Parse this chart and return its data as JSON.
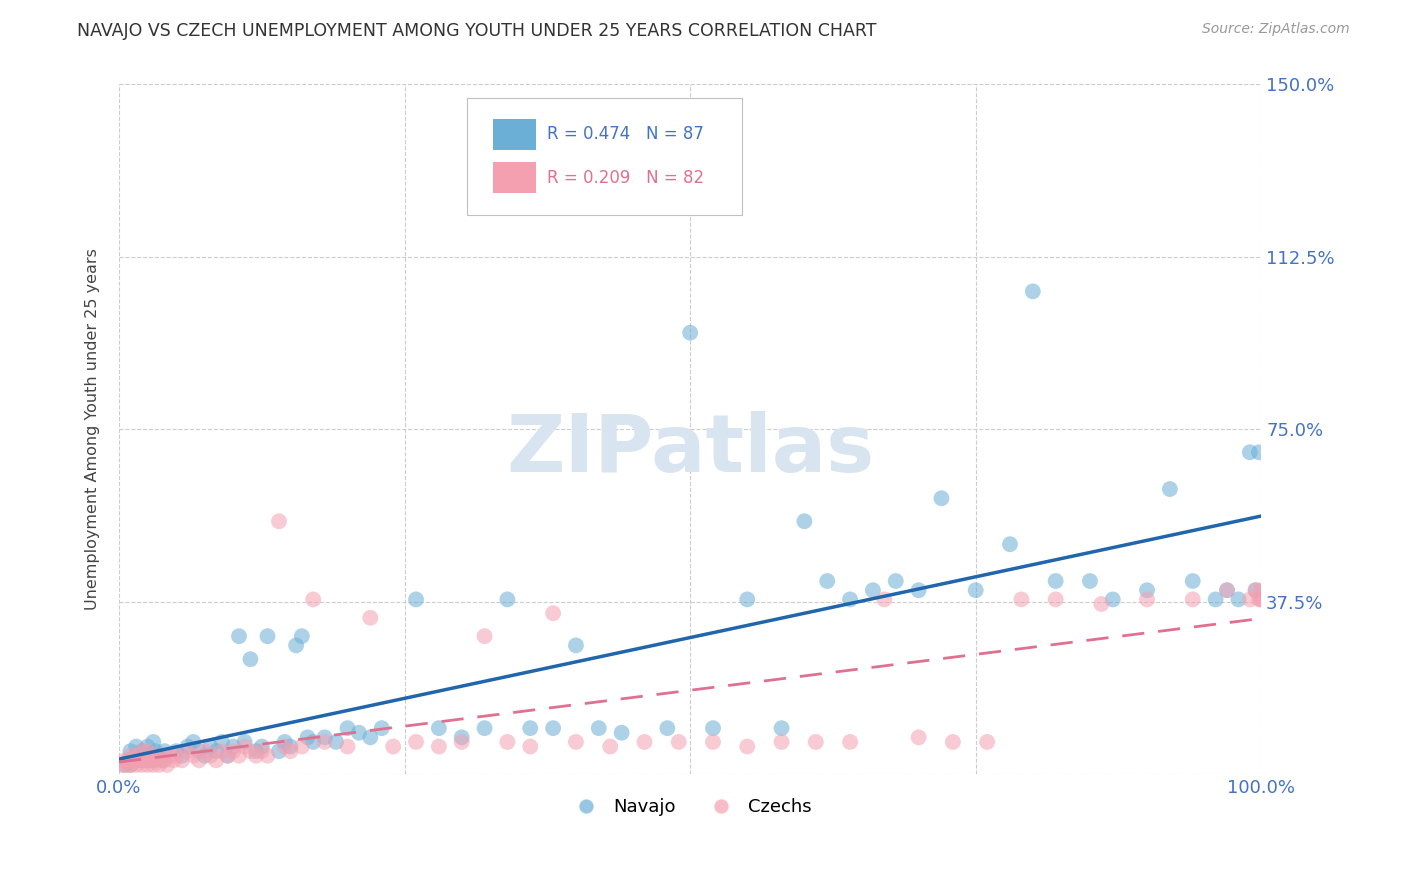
{
  "title": "NAVAJO VS CZECH UNEMPLOYMENT AMONG YOUTH UNDER 25 YEARS CORRELATION CHART",
  "source": "Source: ZipAtlas.com",
  "ylabel": "Unemployment Among Youth under 25 years",
  "yticks": [
    0.0,
    0.375,
    0.75,
    1.125,
    1.5
  ],
  "ytick_labels": [
    "",
    "37.5%",
    "75.0%",
    "112.5%",
    "150.0%"
  ],
  "legend_navajo_r": "R = 0.474",
  "legend_navajo_n": "N = 87",
  "legend_czech_r": "R = 0.209",
  "legend_czech_n": "N = 82",
  "navajo_color": "#6baed6",
  "czech_color": "#f4a0b0",
  "navajo_line_color": "#2166ac",
  "czech_line_color": "#e07090",
  "watermark": "ZIPatlas",
  "xmin": 0.0,
  "xmax": 1.0,
  "ymin": 0.0,
  "ymax": 1.5,
  "background_color": "#ffffff",
  "grid_color": "#cccccc",
  "title_color": "#333333",
  "tick_label_color": "#4472c4",
  "watermark_color": "#d8e4f0"
}
